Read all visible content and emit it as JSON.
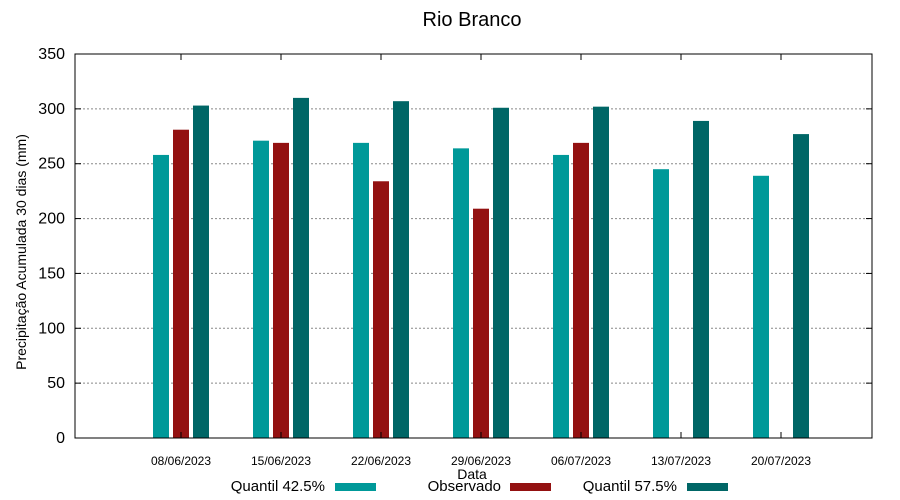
{
  "chart_data": {
    "type": "bar",
    "title": "Rio Branco",
    "xlabel": "Data",
    "ylabel": "Precipitação Acumulada 30 dias (mm)",
    "ylim": [
      0,
      350
    ],
    "yticks": [
      0,
      50,
      100,
      150,
      200,
      250,
      300,
      350
    ],
    "grid": true,
    "legend_position": "bottom",
    "categories": [
      "08/06/2023",
      "15/06/2023",
      "22/06/2023",
      "29/06/2023",
      "06/07/2023",
      "13/07/2023",
      "20/07/2023"
    ],
    "series": [
      {
        "name": "Quantil 42.5%",
        "color": "#009999",
        "values": [
          258,
          271,
          269,
          264,
          258,
          245,
          239
        ]
      },
      {
        "name": "Observado",
        "color": "#931111",
        "values": [
          281,
          269,
          234,
          209,
          269,
          null,
          null
        ]
      },
      {
        "name": "Quantil 57.5%",
        "color": "#006666",
        "values": [
          303,
          310,
          307,
          301,
          302,
          289,
          277
        ]
      }
    ]
  }
}
